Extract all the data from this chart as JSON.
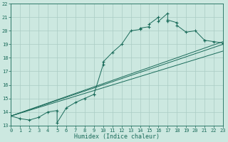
{
  "title": "",
  "xlabel": "Humidex (Indice chaleur)",
  "ylabel": "",
  "bg_color": "#cce8e0",
  "line_color": "#1a6b5a",
  "grid_color": "#aaccc4",
  "xlim": [
    0,
    23
  ],
  "ylim": [
    13,
    22
  ],
  "xticks": [
    0,
    1,
    2,
    3,
    4,
    5,
    6,
    7,
    8,
    9,
    10,
    11,
    12,
    13,
    14,
    15,
    16,
    17,
    18,
    19,
    20,
    21,
    22,
    23
  ],
  "yticks": [
    13,
    14,
    15,
    16,
    17,
    18,
    19,
    20,
    21,
    22
  ],
  "humidex_x": [
    0,
    1,
    2,
    3,
    4,
    5,
    5,
    6,
    7,
    8,
    9,
    9,
    10,
    10,
    11,
    12,
    13,
    14,
    14,
    15,
    15,
    16,
    16,
    17,
    17,
    17,
    18,
    18,
    19,
    20,
    21,
    21,
    22,
    23
  ],
  "humidex_y": [
    13.7,
    13.5,
    13.4,
    13.6,
    14.0,
    14.1,
    13.2,
    14.3,
    14.7,
    15.0,
    15.3,
    15.3,
    17.5,
    17.7,
    18.4,
    19.0,
    20.0,
    20.1,
    20.2,
    20.3,
    20.5,
    21.0,
    20.7,
    21.3,
    20.7,
    20.8,
    20.6,
    20.4,
    19.9,
    20.0,
    19.3,
    19.3,
    19.2,
    19.1
  ],
  "trend_line1": [
    [
      0,
      13.7
    ],
    [
      23,
      19.2
    ]
  ],
  "trend_line2": [
    [
      0,
      13.7
    ],
    [
      23,
      19.0
    ]
  ],
  "trend_line3": [
    [
      0,
      13.7
    ],
    [
      23,
      18.5
    ]
  ]
}
